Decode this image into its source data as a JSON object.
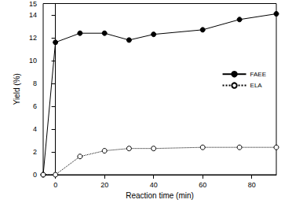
{
  "chart_data": {
    "type": "line",
    "x_label": "Reaction time (min)",
    "y_label": "Yield (%)",
    "x": [
      -5,
      0,
      10,
      20,
      30,
      40,
      60,
      75,
      90
    ],
    "series": [
      {
        "name": "FAEE",
        "color": "#000000",
        "marker": "filled_circle",
        "line_style": "solid",
        "values": [
          0,
          11.6,
          12.4,
          12.4,
          11.8,
          12.3,
          12.7,
          13.6,
          14.1
        ]
      },
      {
        "name": "ELA",
        "color": "#000000",
        "marker": "open_circle",
        "line_style": "dotted",
        "values": [
          0,
          0,
          1.6,
          2.1,
          2.3,
          2.3,
          2.4,
          2.4,
          2.4
        ]
      }
    ],
    "xlim": [
      -5,
      90
    ],
    "xticks": [
      0,
      20,
      40,
      60,
      80
    ],
    "ylim": [
      0,
      15
    ],
    "yticks": [
      0,
      2,
      4,
      6,
      8,
      10,
      12,
      14
    ],
    "grid": false,
    "legend": "right"
  }
}
